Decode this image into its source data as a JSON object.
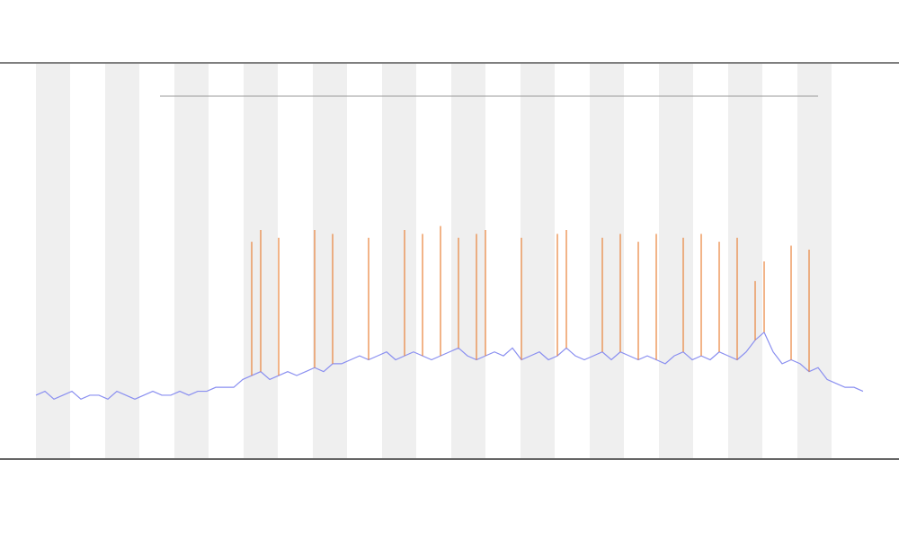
{
  "chart_data": {
    "type": "line",
    "x": [
      0,
      1,
      2,
      3,
      4,
      5,
      6,
      7,
      8,
      9,
      10,
      11,
      12,
      13,
      14,
      15,
      16,
      17,
      18,
      19,
      20,
      21,
      22,
      23,
      24,
      25,
      26,
      27,
      28,
      29,
      30,
      31,
      32,
      33,
      34,
      35,
      36,
      37,
      38,
      39,
      40,
      41,
      42,
      43,
      44,
      45,
      46,
      47,
      48,
      49,
      50,
      51,
      52,
      53,
      54,
      55,
      56,
      57,
      58,
      59,
      60,
      61,
      62,
      63,
      64,
      65,
      66,
      67,
      68,
      69,
      70,
      71,
      72,
      73,
      74,
      75,
      76,
      77,
      78,
      79,
      80,
      81,
      82,
      83,
      84,
      85,
      86,
      87,
      88,
      89,
      90,
      91,
      92
    ],
    "xlim": [
      0,
      92
    ],
    "ylim": [
      0,
      100
    ],
    "series": [
      {
        "color": "#8a8ff0",
        "values": [
          16,
          17,
          15,
          16,
          17,
          15,
          16,
          16,
          15,
          17,
          16,
          15,
          16,
          17,
          16,
          16,
          17,
          16,
          17,
          17,
          18,
          18,
          18,
          20,
          21,
          22,
          20,
          21,
          22,
          21,
          22,
          23,
          22,
          24,
          24,
          25,
          26,
          25,
          26,
          27,
          25,
          26,
          27,
          26,
          25,
          26,
          27,
          28,
          26,
          25,
          26,
          27,
          26,
          28,
          25,
          26,
          27,
          25,
          26,
          28,
          26,
          25,
          26,
          27,
          25,
          27,
          26,
          25,
          26,
          25,
          24,
          26,
          27,
          25,
          26,
          25,
          27,
          26,
          25,
          27,
          30,
          32,
          27,
          24,
          25,
          24,
          22,
          23,
          20,
          19,
          18,
          18,
          17
        ]
      },
      {
        "color": "#e8823a",
        "values": [
          null,
          null,
          null,
          null,
          null,
          null,
          null,
          null,
          null,
          null,
          null,
          null,
          null,
          null,
          null,
          null,
          null,
          null,
          null,
          null,
          null,
          null,
          null,
          null,
          55,
          58,
          null,
          56,
          null,
          null,
          null,
          58,
          null,
          57,
          null,
          null,
          null,
          56,
          null,
          null,
          null,
          58,
          null,
          57,
          null,
          59,
          null,
          56,
          null,
          57,
          58,
          null,
          null,
          null,
          56,
          null,
          null,
          null,
          57,
          58,
          null,
          null,
          null,
          56,
          null,
          57,
          null,
          55,
          null,
          57,
          null,
          null,
          56,
          null,
          57,
          null,
          55,
          null,
          56,
          null,
          45,
          50,
          null,
          null,
          54,
          null,
          53,
          null,
          null,
          null,
          null,
          null,
          null
        ]
      }
    ]
  }
}
